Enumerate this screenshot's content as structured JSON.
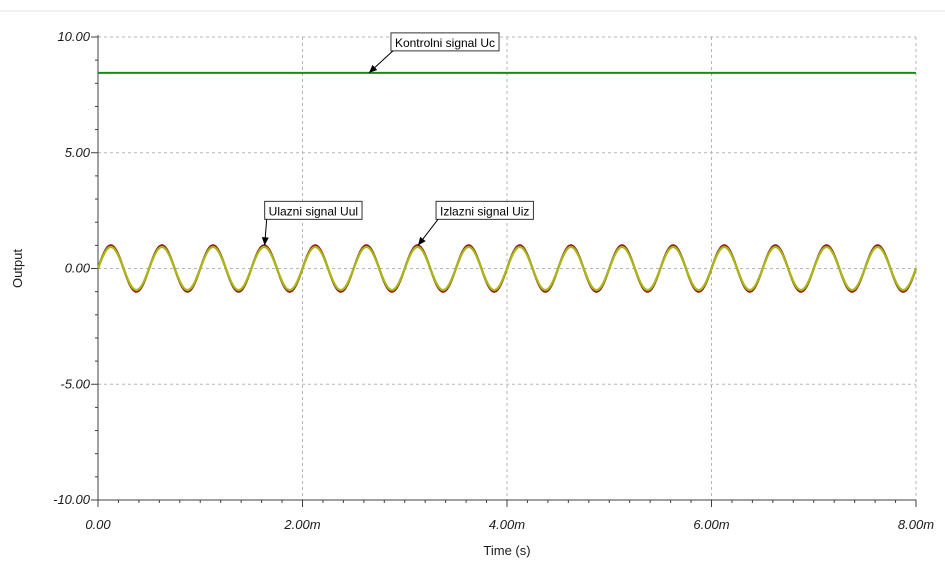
{
  "chart_data": {
    "type": "line",
    "title": "",
    "xlabel": "Time (s)",
    "ylabel": "Output",
    "xlim": [
      0,
      0.008
    ],
    "ylim": [
      -10,
      10
    ],
    "x_tick_labels": [
      "0.00",
      "2.00m",
      "4.00m",
      "6.00m",
      "8.00m"
    ],
    "x_tick_values": [
      0,
      0.002,
      0.004,
      0.006,
      0.008
    ],
    "y_tick_labels": [
      "10.00",
      "5.00",
      "0.00",
      "-5.00",
      "-10.00"
    ],
    "y_tick_values": [
      10,
      5,
      0,
      -5,
      -10
    ],
    "grid": true,
    "series": [
      {
        "name": "Kontrolni signal Uc",
        "kind": "constant",
        "value": 8.45,
        "x_range": [
          0,
          0.008
        ],
        "color": "#1a8a1a"
      },
      {
        "name": "Ulazni signal Uul",
        "kind": "sine",
        "amplitude": 1.0,
        "frequency_hz": 2000,
        "x_range": [
          0,
          0.008
        ],
        "color": "#8b1a1a"
      },
      {
        "name": "Izlazni signal Uiz",
        "kind": "sine",
        "amplitude": 0.93,
        "frequency_hz": 2000,
        "x_range": [
          0,
          0.008
        ],
        "color": "#a8b814"
      }
    ],
    "annotations": [
      {
        "text": "Kontrolni signal Uc",
        "x": 0.00265,
        "y": 8.45
      },
      {
        "text": "Ulazni signal Uul",
        "x": 0.00163,
        "y": 1.0
      },
      {
        "text": "Izlazni signal Uiz",
        "x": 0.00313,
        "y": 1.0
      }
    ],
    "colors": {
      "grid": "#b5b5b5",
      "axis": "#404040",
      "border": "#d0d0d0"
    }
  }
}
